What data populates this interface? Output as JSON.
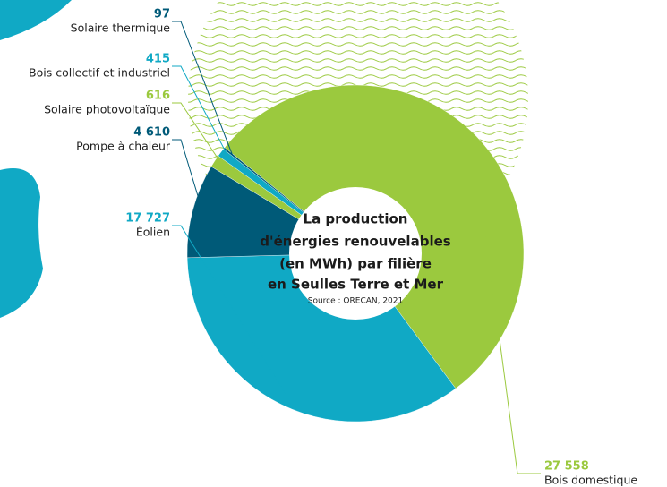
{
  "chart_data": {
    "type": "donut",
    "title": [
      "La production",
      "d'énergies renouvelables",
      "(en MWh) par filière",
      "en Seulles Terre et Mer"
    ],
    "source": "Source : ORECAN, 2021",
    "categories": [
      "Bois domestique",
      "Éolien",
      "Pompe à chaleur",
      "Solaire photovoltaïque",
      "Bois collectif et industriel",
      "Solaire thermique"
    ],
    "values": [
      27558,
      17727,
      4610,
      616,
      415,
      97
    ],
    "value_labels": [
      "27 558",
      "17 727",
      "4 610",
      "616",
      "415",
      "97"
    ],
    "colors": [
      "#9bc93e",
      "#10a9c5",
      "#005a78",
      "#9bc93e",
      "#10a9c5",
      "#005a78"
    ]
  }
}
